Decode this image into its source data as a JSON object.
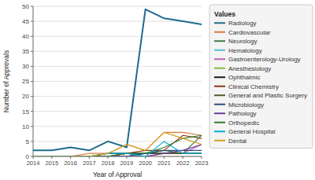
{
  "chart_data": {
    "type": "line",
    "xlabel": "Year of Approval",
    "ylabel": "Number of Approvals",
    "legend_title": "Values",
    "x": [
      2014,
      2015,
      2016,
      2017,
      2018,
      2019,
      2020,
      2021,
      2022,
      2023
    ],
    "series": [
      {
        "name": "Radiology",
        "color": "#1f6b8e",
        "values": [
          2,
          2,
          3,
          2,
          5,
          3,
          49,
          46,
          45,
          44
        ]
      },
      {
        "name": "Cardiovascular",
        "color": "#e07b39",
        "values": [
          0,
          0,
          0,
          1,
          1,
          4,
          2,
          8,
          8,
          7
        ]
      },
      {
        "name": "Neurology",
        "color": "#3a7d44",
        "values": [
          0,
          0,
          0,
          0,
          0,
          1,
          1,
          2,
          1,
          7
        ]
      },
      {
        "name": "Hematology",
        "color": "#5bbcd6",
        "values": [
          0,
          0,
          0,
          0,
          1,
          1,
          1,
          1,
          1,
          1
        ]
      },
      {
        "name": "Gastroenterology-Urology",
        "color": "#c060b0",
        "values": [
          0,
          0,
          0,
          0,
          0,
          1,
          0,
          1,
          1,
          4
        ]
      },
      {
        "name": "Anesthesiology",
        "color": "#8db83e",
        "values": [
          0,
          0,
          0,
          0,
          0,
          0,
          1,
          1,
          1,
          1
        ]
      },
      {
        "name": "Ophthalmic",
        "color": "#1a1a1a",
        "values": [
          0,
          0,
          0,
          0,
          1,
          1,
          1,
          1,
          1,
          1
        ]
      },
      {
        "name": "Clinical Chemistry",
        "color": "#8b3a10",
        "values": [
          0,
          0,
          0,
          0,
          0,
          1,
          2,
          2,
          7,
          6
        ]
      },
      {
        "name": "General and Plastic Surgery",
        "color": "#4a5e2a",
        "values": [
          0,
          0,
          0,
          0,
          0,
          0,
          1,
          1,
          1,
          1
        ]
      },
      {
        "name": "Microbiology",
        "color": "#2c4b7c",
        "values": [
          0,
          0,
          0,
          0,
          0,
          0,
          1,
          2,
          2,
          2
        ]
      },
      {
        "name": "Pathology",
        "color": "#6a3d9a",
        "values": [
          0,
          0,
          0,
          0,
          0,
          0,
          0,
          1,
          2,
          4
        ]
      },
      {
        "name": "Orthopedic",
        "color": "#2e7d32",
        "values": [
          0,
          0,
          0,
          0,
          0,
          1,
          1,
          3,
          6,
          7
        ]
      },
      {
        "name": "General Hospital",
        "color": "#00b0d4",
        "values": [
          0,
          0,
          0,
          0,
          1,
          1,
          0,
          5,
          1,
          1
        ]
      },
      {
        "name": "Dental",
        "color": "#d4a020",
        "values": [
          0,
          0,
          0,
          0,
          1,
          4,
          2,
          8,
          6,
          4
        ]
      }
    ],
    "xlim": [
      2014,
      2023
    ],
    "xticks": [
      2014,
      2015,
      2016,
      2017,
      2018,
      2019,
      2020,
      2021,
      2022,
      2023
    ],
    "ylim": [
      0,
      50
    ],
    "yticks": [
      0,
      5,
      10,
      15,
      20,
      25,
      30,
      35,
      40,
      45,
      50
    ],
    "grid": true,
    "legend": "right"
  }
}
